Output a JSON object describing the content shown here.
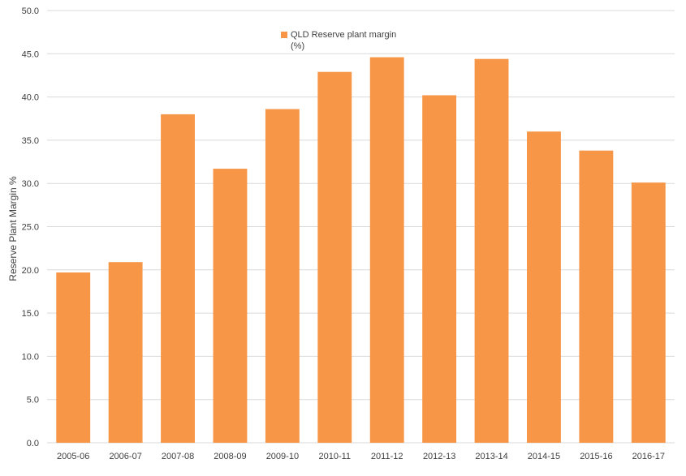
{
  "chart_data": {
    "type": "bar",
    "title": "",
    "xlabel": "",
    "ylabel": "Reserve Plant Margin %",
    "ylim": [
      0,
      50
    ],
    "ytick_step": 5,
    "grid": true,
    "legend_position": "top-center",
    "categories": [
      "2005-06",
      "2006-07",
      "2007-08",
      "2008-09",
      "2009-10",
      "2010-11",
      "2011-12",
      "2012-13",
      "2013-14",
      "2014-15",
      "2015-16",
      "2016-17"
    ],
    "series": [
      {
        "name": "QLD Reserve plant margin (%)",
        "legend_lines": [
          "QLD Reserve plant margin",
          "(%)"
        ],
        "color": "#F79646",
        "values": [
          19.7,
          20.9,
          38.0,
          31.7,
          38.6,
          42.9,
          44.6,
          40.2,
          44.4,
          36.0,
          33.8,
          30.1
        ]
      }
    ],
    "colors": {
      "bar": "#F79646",
      "grid": "#D9D9D9",
      "text": "#404040"
    }
  }
}
